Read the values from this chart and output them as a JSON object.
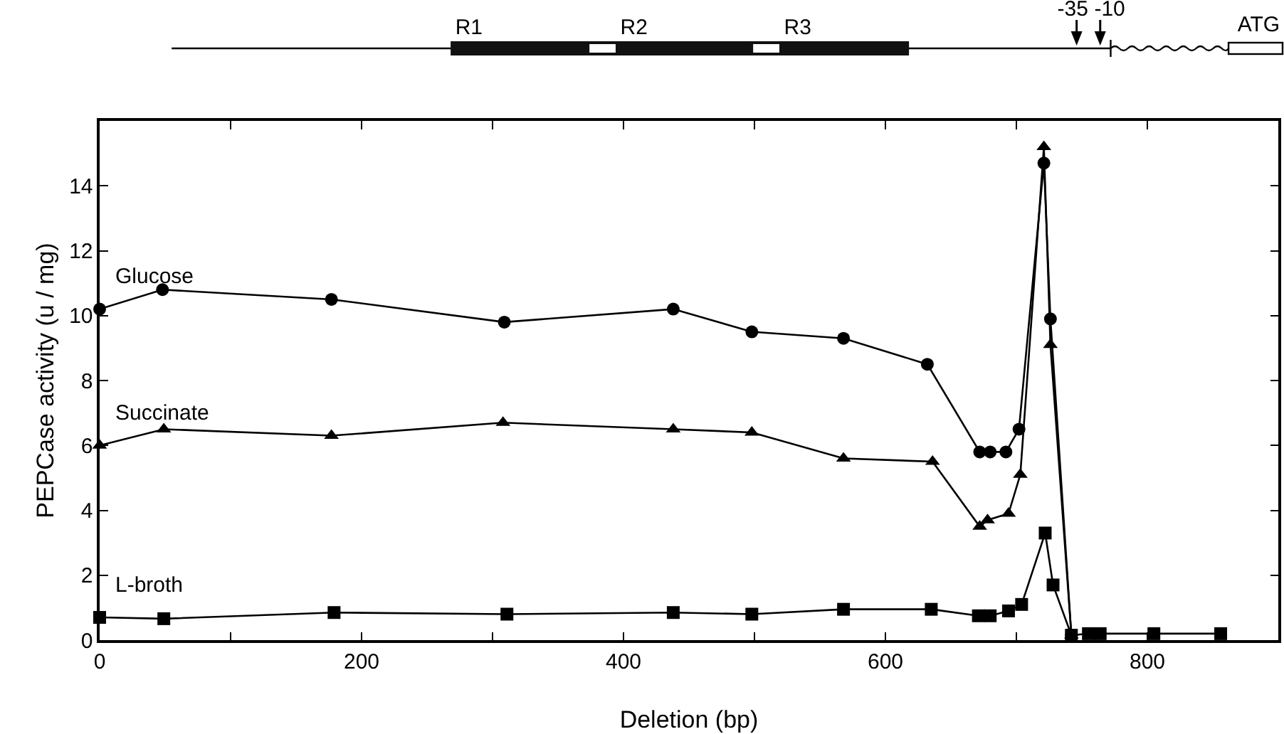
{
  "chart_data": {
    "type": "line",
    "xlabel": "Deletion (bp)",
    "ylabel": "PEPCase activity (u / mg)",
    "xlim": [
      0,
      900
    ],
    "xticks": [
      0,
      {
        "value": 100,
        "label": null
      },
      200,
      {
        "value": 300,
        "label": null
      },
      400,
      {
        "value": 500,
        "label": null
      },
      600,
      {
        "value": 700,
        "label": null
      },
      800
    ],
    "ylim": [
      0,
      16
    ],
    "yticks": [
      0,
      2,
      4,
      6,
      8,
      10,
      12,
      14
    ],
    "grid": false,
    "legend": false,
    "annotations": [
      "R1",
      "R2",
      "R3",
      "-35",
      "-10",
      "ATG"
    ],
    "series": [
      {
        "name": "Glucose",
        "color": "#000000",
        "marker": "circle",
        "x": [
          0,
          48,
          177,
          309,
          438,
          498,
          568,
          632,
          672,
          680,
          692,
          702,
          721,
          726,
          742
        ],
        "values": [
          10.2,
          10.8,
          10.5,
          9.8,
          10.2,
          9.5,
          9.3,
          8.5,
          5.8,
          5.8,
          5.8,
          6.5,
          14.7,
          9.9,
          0.15
        ]
      },
      {
        "name": "Succinate",
        "color": "#000000",
        "marker": "triangle",
        "x": [
          0,
          49,
          177,
          308,
          438,
          498,
          568,
          636,
          672,
          678,
          694,
          703,
          721,
          726,
          742
        ],
        "values": [
          6.0,
          6.5,
          6.3,
          6.7,
          6.5,
          6.4,
          5.6,
          5.5,
          3.5,
          3.7,
          3.9,
          5.1,
          15.2,
          9.1,
          0.15
        ]
      },
      {
        "name": "L-broth",
        "color": "#000000",
        "marker": "square",
        "x": [
          0,
          49,
          179,
          311,
          438,
          498,
          568,
          635,
          671,
          680,
          694,
          704,
          722,
          728,
          742,
          755,
          764,
          805,
          856
        ],
        "values": [
          0.7,
          0.66,
          0.85,
          0.8,
          0.85,
          0.8,
          0.95,
          0.95,
          0.75,
          0.75,
          0.9,
          1.1,
          3.3,
          1.7,
          0.15,
          0.2,
          0.2,
          0.2,
          0.2
        ]
      }
    ]
  }
}
